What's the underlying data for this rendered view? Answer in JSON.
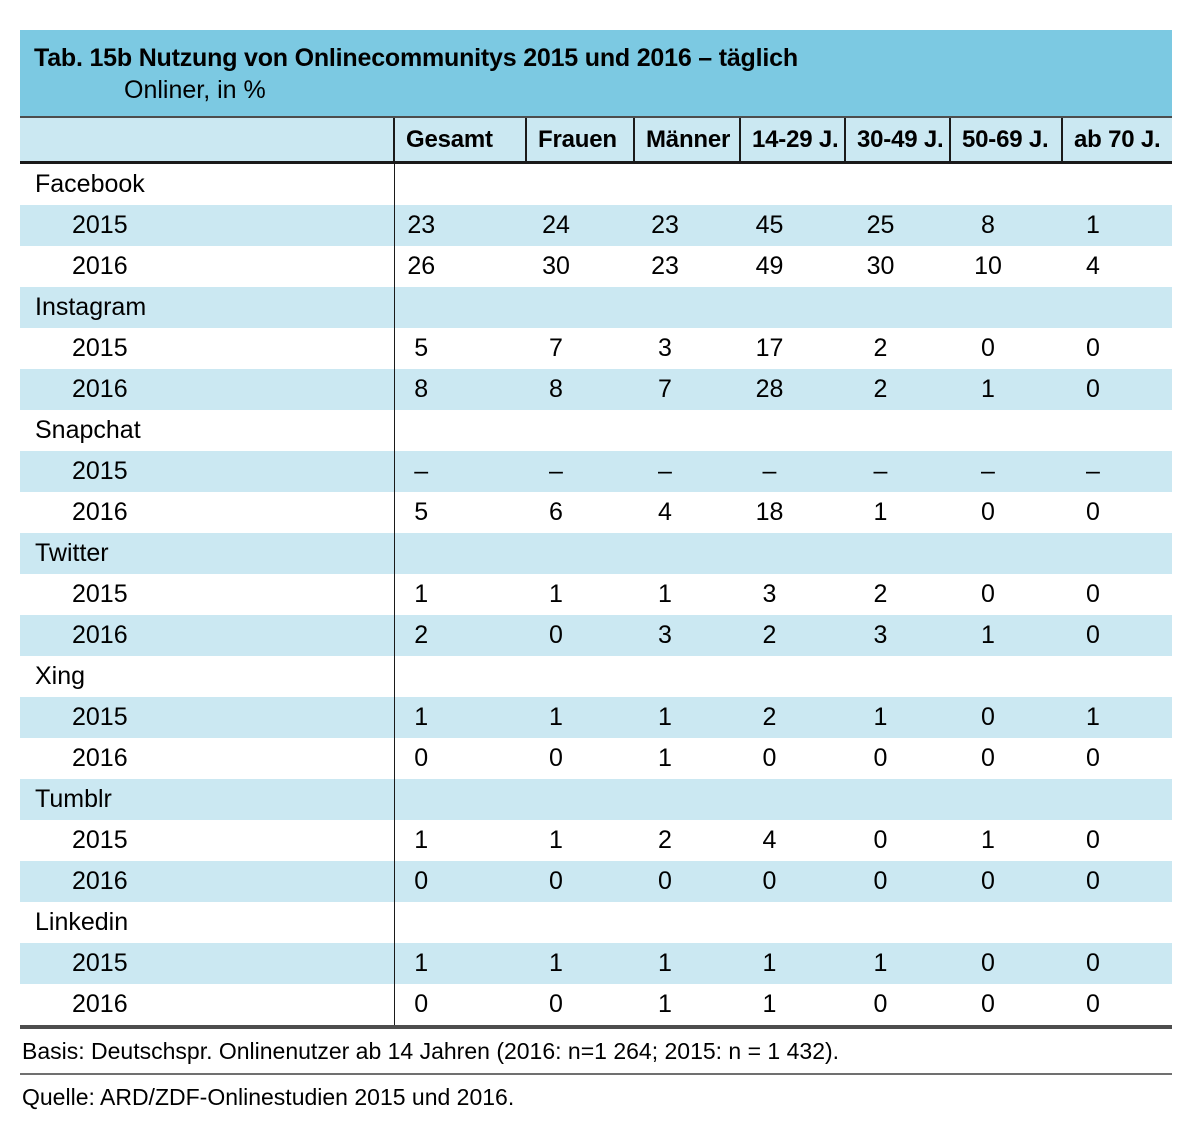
{
  "table": {
    "title": "Tab. 15b Nutzung von Onlinecommunitys 2015 und 2016 – täglich",
    "subtitle": "Onliner, in %",
    "columns": [
      "Gesamt",
      "Frauen",
      "Männer",
      "14-29 J.",
      "30-49 J.",
      "50-69 J.",
      "ab 70 J."
    ],
    "groups": [
      {
        "platform": "Facebook",
        "rows": [
          {
            "year": "2015",
            "values": [
              "23",
              "24",
              "23",
              "45",
              "25",
              "8",
              "1"
            ]
          },
          {
            "year": "2016",
            "values": [
              "26",
              "30",
              "23",
              "49",
              "30",
              "10",
              "4"
            ]
          }
        ]
      },
      {
        "platform": "Instagram",
        "rows": [
          {
            "year": "2015",
            "values": [
              "5",
              "7",
              "3",
              "17",
              "2",
              "0",
              "0"
            ]
          },
          {
            "year": "2016",
            "values": [
              "8",
              "8",
              "7",
              "28",
              "2",
              "1",
              "0"
            ]
          }
        ]
      },
      {
        "platform": "Snapchat",
        "rows": [
          {
            "year": "2015",
            "values": [
              "–",
              "–",
              "–",
              "–",
              "–",
              "–",
              "–"
            ]
          },
          {
            "year": "2016",
            "values": [
              "5",
              "6",
              "4",
              "18",
              "1",
              "0",
              "0"
            ]
          }
        ]
      },
      {
        "platform": "Twitter",
        "rows": [
          {
            "year": "2015",
            "values": [
              "1",
              "1",
              "1",
              "3",
              "2",
              "0",
              "0"
            ]
          },
          {
            "year": "2016",
            "values": [
              "2",
              "0",
              "3",
              "2",
              "3",
              "1",
              "0"
            ]
          }
        ]
      },
      {
        "platform": "Xing",
        "rows": [
          {
            "year": "2015",
            "values": [
              "1",
              "1",
              "1",
              "2",
              "1",
              "0",
              "1"
            ]
          },
          {
            "year": "2016",
            "values": [
              "0",
              "0",
              "1",
              "0",
              "0",
              "0",
              "0"
            ]
          }
        ]
      },
      {
        "platform": "Tumblr",
        "rows": [
          {
            "year": "2015",
            "values": [
              "1",
              "1",
              "2",
              "4",
              "0",
              "1",
              "0"
            ]
          },
          {
            "year": "2016",
            "values": [
              "0",
              "0",
              "0",
              "0",
              "0",
              "0",
              "0"
            ]
          }
        ]
      },
      {
        "platform": "Linkedin",
        "rows": [
          {
            "year": "2015",
            "values": [
              "1",
              "1",
              "1",
              "1",
              "1",
              "0",
              "0"
            ]
          },
          {
            "year": "2016",
            "values": [
              "0",
              "0",
              "1",
              "1",
              "0",
              "0",
              "0"
            ]
          }
        ]
      }
    ],
    "footnotes": {
      "basis": "Basis: Deutschspr. Onlinenutzer ab 14 Jahren (2016: n=1 264; 2015: n = 1 432).",
      "quelle": "Quelle: ARD/ZDF-Onlinestudien 2015 und 2016."
    },
    "colors": {
      "title_band": "#7cc9e2",
      "row_highlight": "#cbe8f2",
      "header_bg": "#cbe8f2",
      "rule_dark": "#1a1a1a",
      "rule_gray": "#4d4d4d"
    }
  },
  "chart_data": {
    "type": "table",
    "title": "Tab. 15b Nutzung von Onlinecommunitys 2015 und 2016 – täglich",
    "subtitle": "Onliner, in %",
    "columns": [
      "",
      "Gesamt",
      "Frauen",
      "Männer",
      "14-29 J.",
      "30-49 J.",
      "50-69 J.",
      "ab 70 J."
    ],
    "rows": [
      [
        "Facebook",
        "",
        "",
        "",
        "",
        "",
        "",
        ""
      ],
      [
        "2015",
        "23",
        "24",
        "23",
        "45",
        "25",
        "8",
        "1"
      ],
      [
        "2016",
        "26",
        "30",
        "23",
        "49",
        "30",
        "10",
        "4"
      ],
      [
        "Instagram",
        "",
        "",
        "",
        "",
        "",
        "",
        ""
      ],
      [
        "2015",
        "5",
        "7",
        "3",
        "17",
        "2",
        "0",
        "0"
      ],
      [
        "2016",
        "8",
        "8",
        "7",
        "28",
        "2",
        "1",
        "0"
      ],
      [
        "Snapchat",
        "",
        "",
        "",
        "",
        "",
        "",
        ""
      ],
      [
        "2015",
        "–",
        "–",
        "–",
        "–",
        "–",
        "–",
        "–"
      ],
      [
        "2016",
        "5",
        "6",
        "4",
        "18",
        "1",
        "0",
        "0"
      ],
      [
        "Twitter",
        "",
        "",
        "",
        "",
        "",
        "",
        ""
      ],
      [
        "2015",
        "1",
        "1",
        "1",
        "3",
        "2",
        "0",
        "0"
      ],
      [
        "2016",
        "2",
        "0",
        "3",
        "2",
        "3",
        "1",
        "0"
      ],
      [
        "Xing",
        "",
        "",
        "",
        "",
        "",
        "",
        ""
      ],
      [
        "2015",
        "1",
        "1",
        "1",
        "2",
        "1",
        "0",
        "1"
      ],
      [
        "2016",
        "0",
        "0",
        "1",
        "0",
        "0",
        "0",
        "0"
      ],
      [
        "Tumblr",
        "",
        "",
        "",
        "",
        "",
        "",
        ""
      ],
      [
        "2015",
        "1",
        "1",
        "2",
        "4",
        "0",
        "1",
        "0"
      ],
      [
        "2016",
        "0",
        "0",
        "0",
        "0",
        "0",
        "0",
        "0"
      ],
      [
        "Linkedin",
        "",
        "",
        "",
        "",
        "",
        "",
        ""
      ],
      [
        "2015",
        "1",
        "1",
        "1",
        "1",
        "1",
        "0",
        "0"
      ],
      [
        "2016",
        "0",
        "0",
        "1",
        "1",
        "0",
        "0",
        "0"
      ]
    ]
  }
}
